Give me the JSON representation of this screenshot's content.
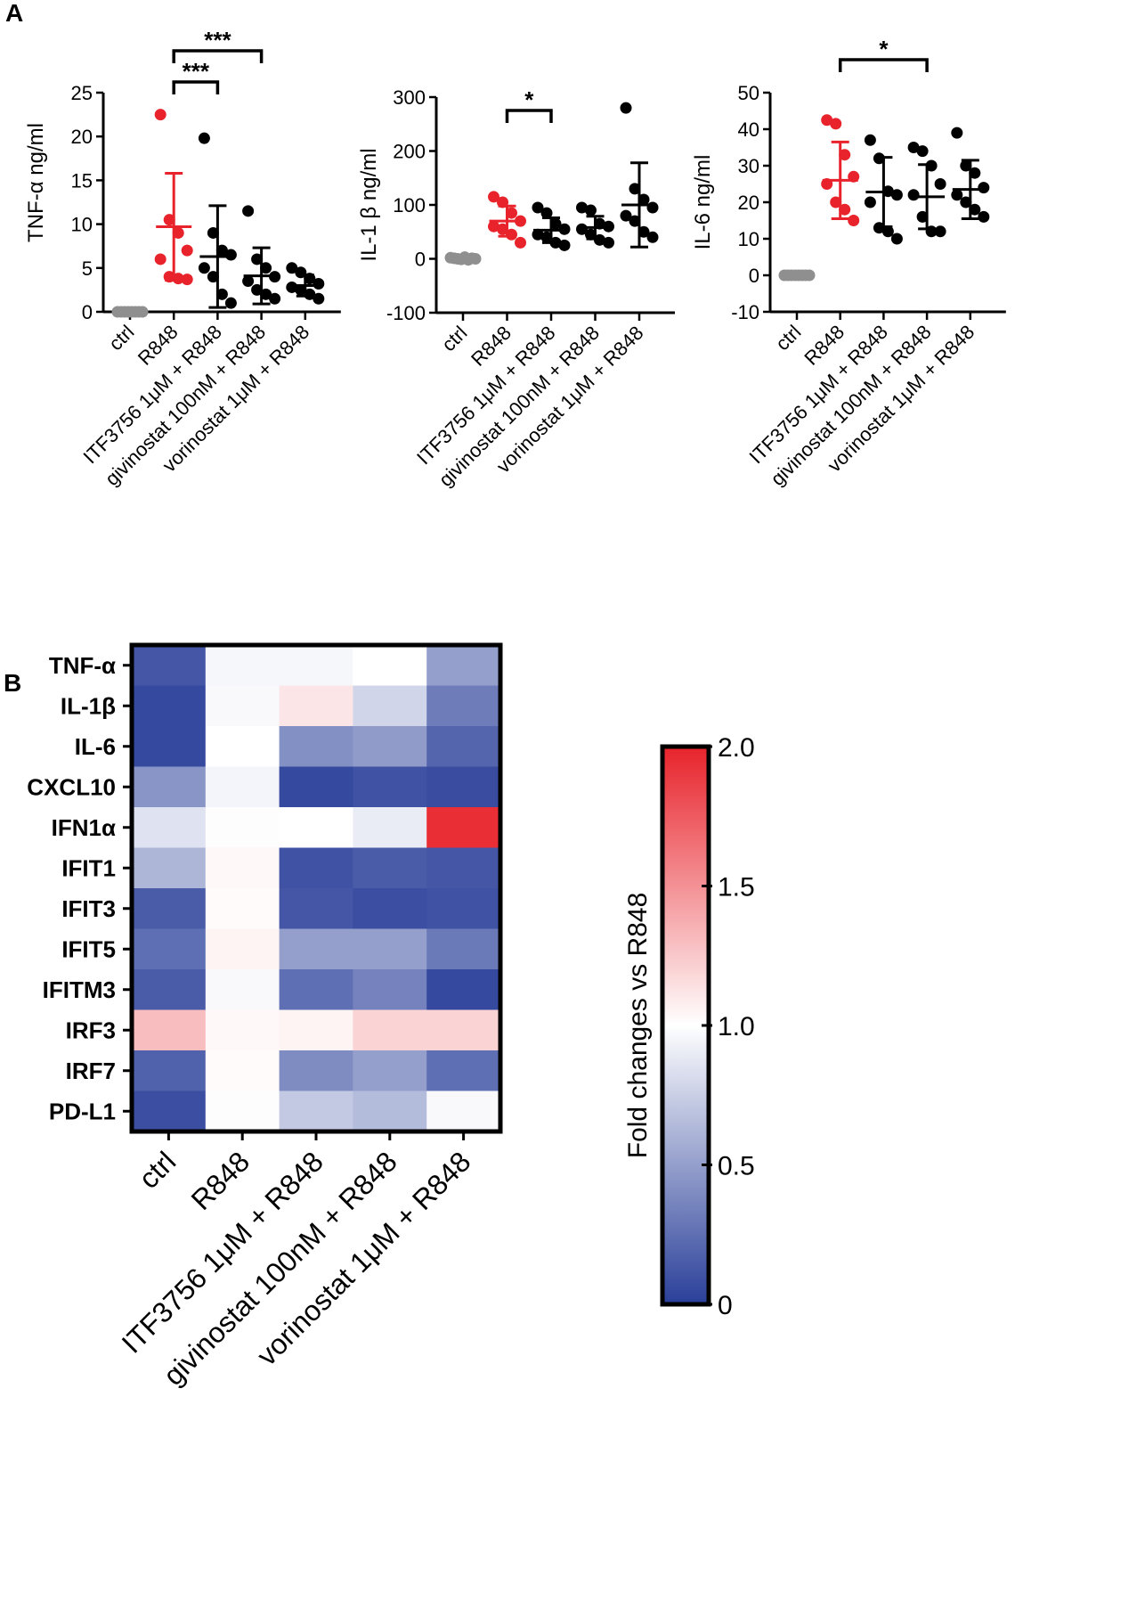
{
  "panel_labels": {
    "a": "A",
    "b": "B"
  },
  "treatments": [
    "ctrl",
    "R848",
    "ITF3756 1μM + R848",
    "givinostat 100nM + R848",
    "vorinostat 1μM + R848"
  ],
  "colors": {
    "red": "#e8232b",
    "gray": "#8f8f8f",
    "black": "#000000",
    "low": "#2a3f99",
    "mid": "#ffffff",
    "high": "#e8232b"
  },
  "chart_data": [
    {
      "type": "scatter",
      "title": "",
      "ylabel": "TNF-α ng/ml",
      "ylim": [
        0,
        25
      ],
      "yticks": [
        0,
        5,
        10,
        15,
        20,
        25
      ],
      "categories": [
        "ctrl",
        "R848",
        "ITF3756 1μM + R848",
        "givinostat 100nM + R848",
        "vorinostat 1μM + R848"
      ],
      "groups": [
        {
          "points": [
            0,
            0,
            0,
            0,
            0,
            0,
            0,
            0
          ],
          "mean": 0,
          "sd": 0
        },
        {
          "points": [
            22.5,
            10.5,
            9,
            7,
            6,
            4,
            3.8,
            3.7
          ],
          "mean": 9.7,
          "sd": 6.1
        },
        {
          "points": [
            19.8,
            9,
            7,
            6.5,
            5,
            4,
            2,
            1
          ],
          "mean": 6.3,
          "sd": 5.8
        },
        {
          "points": [
            11.5,
            6,
            5,
            4,
            3.5,
            2.5,
            2,
            1.5
          ],
          "mean": 4.1,
          "sd": 3.2
        },
        {
          "points": [
            5,
            4.5,
            3.8,
            3.2,
            2.8,
            2.5,
            2,
            1.5
          ],
          "mean": 3.0,
          "sd": 1.2
        }
      ],
      "significance": [
        {
          "from": 1,
          "to": 2,
          "label": "***"
        },
        {
          "from": 1,
          "to": 3,
          "label": "***"
        }
      ]
    },
    {
      "type": "scatter",
      "title": "",
      "ylabel": "IL-1 β ng/ml",
      "ylim": [
        -100,
        300
      ],
      "yticks": [
        -100,
        0,
        100,
        200,
        300
      ],
      "categories": [
        "ctrl",
        "R848",
        "ITF3756 1μM + R848",
        "givinostat 100nM + R848",
        "vorinostat 1μM + R848"
      ],
      "groups": [
        {
          "points": [
            2,
            1,
            0,
            -1,
            3,
            -2,
            1,
            0
          ],
          "mean": 0,
          "sd": 2
        },
        {
          "points": [
            115,
            105,
            85,
            70,
            60,
            55,
            45,
            30
          ],
          "mean": 70,
          "sd": 28
        },
        {
          "points": [
            95,
            85,
            65,
            55,
            45,
            40,
            30,
            25
          ],
          "mean": 53,
          "sd": 23
        },
        {
          "points": [
            95,
            90,
            65,
            60,
            55,
            45,
            35,
            30
          ],
          "mean": 58,
          "sd": 21
        },
        {
          "points": [
            280,
            130,
            110,
            95,
            80,
            70,
            50,
            40
          ],
          "mean": 100,
          "sd": 78
        }
      ],
      "significance": [
        {
          "from": 1,
          "to": 2,
          "label": "*"
        }
      ]
    },
    {
      "type": "scatter",
      "title": "",
      "ylabel": "IL-6 ng/ml",
      "ylim": [
        -10,
        50
      ],
      "yticks": [
        -10,
        0,
        10,
        20,
        30,
        40,
        50
      ],
      "categories": [
        "ctrl",
        "R848",
        "ITF3756 1μM + R848",
        "givinostat 100nM + R848",
        "vorinostat 1μM + R848"
      ],
      "groups": [
        {
          "points": [
            0,
            0,
            0,
            0,
            0,
            0,
            0,
            0
          ],
          "mean": 0,
          "sd": 0
        },
        {
          "points": [
            42.5,
            41.5,
            33,
            27,
            25,
            20,
            18,
            15
          ],
          "mean": 26,
          "sd": 10.5
        },
        {
          "points": [
            37,
            32,
            23,
            22,
            20,
            13,
            12,
            10
          ],
          "mean": 22.8,
          "sd": 9.5
        },
        {
          "points": [
            35,
            34,
            30,
            25,
            22,
            16,
            12,
            12
          ],
          "mean": 21.5,
          "sd": 8.8
        },
        {
          "points": [
            39,
            30,
            28,
            24,
            22,
            20,
            18,
            16
          ],
          "mean": 23.5,
          "sd": 8
        }
      ],
      "significance": [
        {
          "from": 1,
          "to": 3,
          "label": "*"
        }
      ]
    },
    {
      "type": "heatmap",
      "title": "",
      "rows": [
        "TNF-α",
        "IL-1β",
        "IL-6",
        "CXCL10",
        "IFN1α",
        "IFIT1",
        "IFIT3",
        "IFIT5",
        "IFITM3",
        "IRF3",
        "IRF7",
        "PD-L1"
      ],
      "columns": [
        "ctrl",
        "R848",
        "ITF3756 1μM + R848",
        "givinostat 100nM + R848",
        "vorinostat 1μM + R848"
      ],
      "values": [
        [
          0.12,
          0.96,
          0.96,
          1.0,
          0.5
        ],
        [
          0.05,
          0.97,
          1.12,
          0.78,
          0.32
        ],
        [
          0.05,
          1.0,
          0.42,
          0.48,
          0.2
        ],
        [
          0.45,
          0.95,
          0.05,
          0.1,
          0.07
        ],
        [
          0.85,
          0.99,
          1.0,
          0.9,
          1.95
        ],
        [
          0.62,
          1.03,
          0.1,
          0.15,
          0.12
        ],
        [
          0.15,
          1.02,
          0.12,
          0.08,
          0.1
        ],
        [
          0.25,
          1.05,
          0.5,
          0.5,
          0.3
        ],
        [
          0.15,
          0.97,
          0.25,
          0.35,
          0.05
        ],
        [
          1.3,
          1.03,
          1.05,
          1.2,
          1.2
        ],
        [
          0.18,
          1.02,
          0.4,
          0.5,
          0.25
        ],
        [
          0.08,
          0.99,
          0.72,
          0.65,
          0.97
        ]
      ],
      "colorbar": {
        "label": "Fold changes vs R848",
        "min": 0,
        "max": 2.0,
        "ticks": [
          "0",
          "0.5",
          "1.0",
          "1.5",
          "2.0"
        ]
      }
    }
  ]
}
